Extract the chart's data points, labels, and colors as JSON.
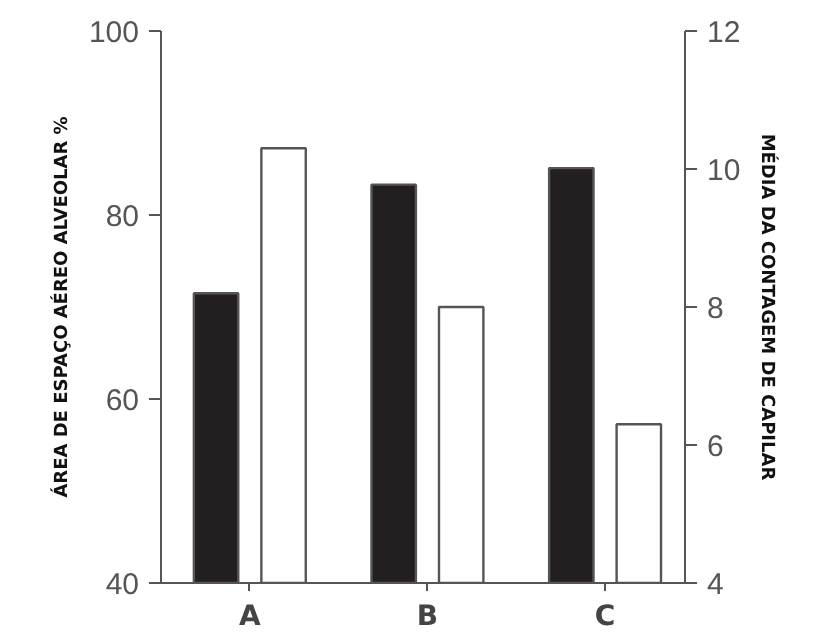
{
  "chart_data": {
    "type": "bar",
    "categories": [
      "A",
      "B",
      "C"
    ],
    "ylabel": "ÁREA DE ESPAÇO AÉREO ALVEOLAR %",
    "y2label": "MÉDIA DA CONTAGEM DE CAPILAR",
    "ylim": [
      40,
      100
    ],
    "yticks": [
      40,
      60,
      80,
      100
    ],
    "y2lim": [
      4,
      12
    ],
    "y2ticks": [
      4,
      6,
      8,
      10,
      12
    ],
    "grid": false,
    "series": [
      {
        "color": "#231f20",
        "values": [
          71.5,
          83.3,
          85.1
        ]
      },
      {
        "color": "#ffffff",
        "axis": "y2",
        "values": [
          10.3,
          8.0,
          6.3
        ]
      }
    ]
  }
}
